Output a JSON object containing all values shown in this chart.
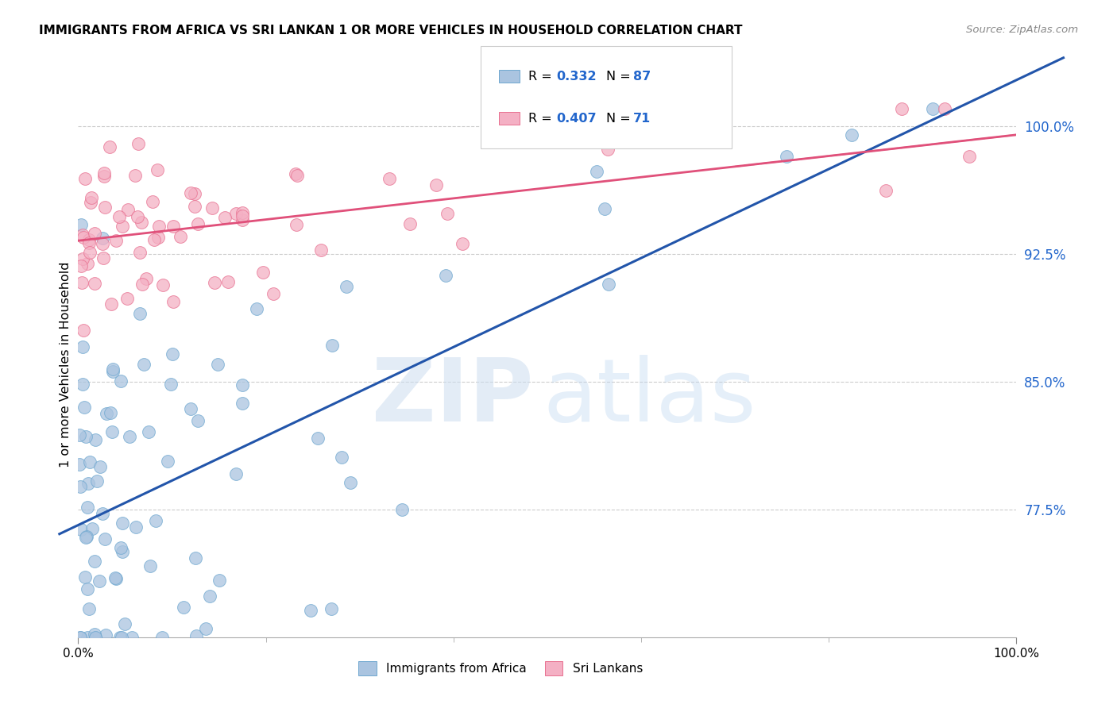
{
  "title": "IMMIGRANTS FROM AFRICA VS SRI LANKAN 1 OR MORE VEHICLES IN HOUSEHOLD CORRELATION CHART",
  "source": "Source: ZipAtlas.com",
  "ylabel": "1 or more Vehicles in Household",
  "xlim": [
    0,
    100
  ],
  "ylim": [
    70,
    102
  ],
  "ytick_vals": [
    77.5,
    85.0,
    92.5,
    100.0
  ],
  "ytick_labels": [
    "77.5%",
    "85.0%",
    "92.5%",
    "100.0%"
  ],
  "africa_color": "#aac4e0",
  "africa_edge": "#6fa8d0",
  "srilanka_color": "#f4b0c4",
  "srilanka_edge": "#e87090",
  "africa_line_color": "#2255aa",
  "srilanka_line_color": "#e0507a",
  "africa_R": 0.332,
  "africa_N": 87,
  "srilanka_R": 0.407,
  "srilanka_N": 71,
  "legend_R_color": "#2266cc",
  "background_color": "#ffffff",
  "grid_color": "#cccccc",
  "africa_seed": 42,
  "srilanka_seed": 17
}
